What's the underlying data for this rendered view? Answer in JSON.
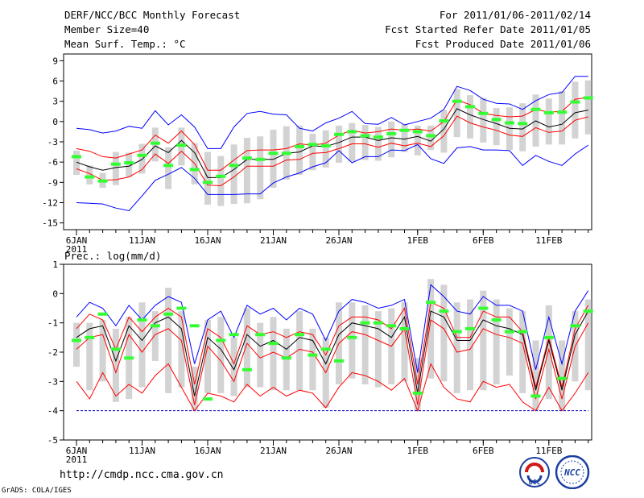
{
  "header": {
    "title": "DERF/NCC/BCC Monthly Forecast",
    "member_size": "Member Size=40",
    "variable": "Mean Surf. Temp.: °C",
    "period": "For 2011/01/06-2011/02/14",
    "fcst_started": "Fcst Started Refer Date 2011/01/05",
    "fcst_produced": "Fcst Produced Date 2011/01/06"
  },
  "footer": {
    "url": "http://cmdp.ncc.cma.gov.cn",
    "credit": "GrADS: COLA/IGES",
    "logo_left_text": "BCC",
    "logo_right_text": "NCC"
  },
  "colors": {
    "box": "#d3d3d3",
    "observed": "#33ff33",
    "mean": "#000000",
    "spread": "#ff0000",
    "envelope": "#0000ff",
    "floor": "#0000c0"
  },
  "chart_data": [
    {
      "type": "line",
      "title": "Mean Surf. Temp.: °C",
      "ylabel": "°C",
      "ylim": [
        -16,
        10
      ],
      "yticks": [
        9,
        6,
        3,
        0,
        -3,
        -6,
        -9,
        -12,
        -15
      ],
      "x_days": [
        1,
        2,
        3,
        4,
        5,
        6,
        7,
        8,
        9,
        10,
        11,
        12,
        13,
        14,
        15,
        16,
        17,
        18,
        19,
        20,
        21,
        22,
        23,
        24,
        25,
        26,
        27,
        28,
        29,
        30,
        31,
        32,
        33,
        34,
        35,
        36,
        37,
        38,
        39,
        40
      ],
      "xticks": [
        {
          "day": 1,
          "label": "6JAN",
          "sublabel": "2011"
        },
        {
          "day": 6,
          "label": "11JAN"
        },
        {
          "day": 11,
          "label": "16JAN"
        },
        {
          "day": 16,
          "label": "21JAN"
        },
        {
          "day": 21,
          "label": "26JAN"
        },
        {
          "day": 27,
          "label": "1FEB"
        },
        {
          "day": 32,
          "label": "6FEB"
        },
        {
          "day": 37,
          "label": "11FEB"
        }
      ],
      "series": [
        {
          "name": "max",
          "color": "#0000ff",
          "values": [
            -1,
            -1.2,
            -1.7,
            -1.4,
            -0.7,
            -1,
            1.6,
            -0.5,
            1,
            -0.8,
            -4,
            -4,
            -0.8,
            1.2,
            1.5,
            1.1,
            1,
            -1,
            -1.4,
            -0.2,
            0.5,
            1.5,
            -0.3,
            -0.4,
            0.6,
            -0.5,
            0,
            0.5,
            1.8,
            5.2,
            4.6,
            3.3,
            2.7,
            2.6,
            1.8,
            3.1,
            4,
            4.3,
            6.7,
            6.7
          ]
        },
        {
          "name": "upper",
          "color": "#ff0000",
          "values": [
            -4,
            -4.4,
            -5.2,
            -5.4,
            -4.8,
            -4.2,
            -2,
            -3.2,
            -1.4,
            -3.4,
            -7.2,
            -7.2,
            -5.7,
            -4.3,
            -4.2,
            -4.2,
            -4,
            -3.3,
            -3.5,
            -3.2,
            -2,
            -1.3,
            -1.7,
            -1.5,
            -1.1,
            -1.3,
            -1.1,
            -1.4,
            0,
            3.2,
            2.5,
            1.2,
            0.9,
            0.7,
            0.8,
            1.8,
            1.4,
            1.5,
            3.3,
            3.6
          ]
        },
        {
          "name": "mean",
          "color": "#000000",
          "values": [
            -6,
            -6.7,
            -7.2,
            -6.8,
            -6.6,
            -5.6,
            -3.6,
            -4.6,
            -2.8,
            -4.6,
            -8.3,
            -8.3,
            -7.1,
            -5.6,
            -5.6,
            -5.6,
            -4.7,
            -4.5,
            -3.6,
            -3.7,
            -3.1,
            -2.3,
            -2.3,
            -2.8,
            -2.4,
            -2.6,
            -2.2,
            -2.9,
            -1.1,
            1.9,
            1,
            0.3,
            -0.3,
            -1,
            -1.1,
            0.1,
            -0.8,
            -0.4,
            1.3,
            1.7
          ]
        },
        {
          "name": "lower",
          "color": "#ff0000",
          "values": [
            -7,
            -7.7,
            -8.7,
            -8.6,
            -8.2,
            -7.1,
            -4.8,
            -6.2,
            -4.4,
            -6.2,
            -9.4,
            -9.5,
            -8.2,
            -6.6,
            -6.6,
            -6.6,
            -5.7,
            -5.6,
            -4.7,
            -4.6,
            -4,
            -3.3,
            -3.3,
            -3.8,
            -3.2,
            -3.6,
            -3.2,
            -3.7,
            -2.1,
            0.8,
            -0.2,
            -0.8,
            -1.3,
            -2,
            -2.2,
            -0.9,
            -1.6,
            -1.4,
            0.2,
            0.7
          ]
        },
        {
          "name": "min",
          "color": "#0000ff",
          "values": [
            -12,
            -12.1,
            -12.2,
            -12.8,
            -13.2,
            -11,
            -8.7,
            -7.8,
            -6.8,
            -8.4,
            -10.8,
            -10.8,
            -10.8,
            -10.7,
            -10.7,
            -9.1,
            -8.2,
            -7.6,
            -6.7,
            -6.1,
            -4.3,
            -6.1,
            -5.2,
            -5.2,
            -4.2,
            -4.3,
            -3.4,
            -5.5,
            -6.2,
            -3.9,
            -3.7,
            -4.2,
            -4.2,
            -4.3,
            -6.5,
            -5,
            -5.9,
            -6.5,
            -4.8,
            -3.5
          ]
        }
      ],
      "boxes": [
        [
          -4.3,
          -7.9
        ],
        [
          -6.5,
          -9.3
        ],
        [
          -7.6,
          -9.8
        ],
        [
          -4.5,
          -9.4
        ],
        [
          -4.6,
          -8.2
        ],
        [
          -3.3,
          -7.7
        ],
        [
          -0.9,
          -5.9
        ],
        [
          -3.8,
          -10
        ],
        [
          -0.9,
          -6.5
        ],
        [
          -3.2,
          -9.3
        ],
        [
          -4.5,
          -12.3
        ],
        [
          -5.1,
          -12.5
        ],
        [
          -3.4,
          -12.2
        ],
        [
          -2.4,
          -12.1
        ],
        [
          -2.2,
          -11.5
        ],
        [
          -1.2,
          -9.8
        ],
        [
          -0.7,
          -8.6
        ],
        [
          -0.6,
          -7.9
        ],
        [
          -1.8,
          -7.2
        ],
        [
          -1.3,
          -6.8
        ],
        [
          -0.6,
          -6.1
        ],
        [
          -0.2,
          -5.9
        ],
        [
          -0.5,
          -5.7
        ],
        [
          -0.8,
          -5.8
        ],
        [
          0,
          -5.3
        ],
        [
          -0.4,
          -4.5
        ],
        [
          -0.6,
          -5
        ],
        [
          -0.6,
          -4.2
        ],
        [
          1.7,
          -4.6
        ],
        [
          4.8,
          -2.3
        ],
        [
          3.9,
          -2.5
        ],
        [
          3.5,
          -3.1
        ],
        [
          2,
          -3.5
        ],
        [
          2.1,
          -4.2
        ],
        [
          2.7,
          -4.4
        ],
        [
          4,
          -3.7
        ],
        [
          3.4,
          -3.4
        ],
        [
          4.5,
          -3.4
        ],
        [
          5.9,
          -2.5
        ],
        [
          6.1,
          -1.9
        ]
      ],
      "observed": [
        -5.2,
        -8.2,
        -8.8,
        -6.3,
        -6.1,
        -5,
        -3.2,
        -6.5,
        -3.5,
        -7.1,
        -9,
        -8.1,
        -6.5,
        -5.4,
        -5.6,
        -4.7,
        -4.7,
        -3.7,
        -3.4,
        -3.6,
        -1.9,
        -1.5,
        -2.1,
        -2.3,
        -1.8,
        -1.3,
        -1.5,
        -2.1,
        0.1,
        3,
        2.2,
        1.2,
        0.3,
        -0.2,
        -0.3,
        1.8,
        1.3,
        1.4,
        2.9,
        3.5
      ]
    },
    {
      "type": "line",
      "title": "Prec.: log(mm/d)",
      "ylabel": "log(mm/d)",
      "ylim": [
        -5,
        1
      ],
      "yticks": [
        1,
        0,
        -1,
        -2,
        -3,
        -4,
        -5
      ],
      "x_days": [
        1,
        2,
        3,
        4,
        5,
        6,
        7,
        8,
        9,
        10,
        11,
        12,
        13,
        14,
        15,
        16,
        17,
        18,
        19,
        20,
        21,
        22,
        23,
        24,
        25,
        26,
        27,
        28,
        29,
        30,
        31,
        32,
        33,
        34,
        35,
        36,
        37,
        38,
        39,
        40
      ],
      "xticks": [
        {
          "day": 1,
          "label": "6JAN",
          "sublabel": "2011"
        },
        {
          "day": 6,
          "label": "11JAN"
        },
        {
          "day": 11,
          "label": "16JAN"
        },
        {
          "day": 16,
          "label": "21JAN"
        },
        {
          "day": 21,
          "label": "26JAN"
        },
        {
          "day": 27,
          "label": "1FEB"
        },
        {
          "day": 32,
          "label": "6FEB"
        },
        {
          "day": 37,
          "label": "11FEB"
        }
      ],
      "floor_level": -4,
      "series": [
        {
          "name": "max",
          "color": "#0000ff",
          "values": [
            -0.8,
            -0.3,
            -0.5,
            -1.1,
            -0.4,
            -0.9,
            -0.4,
            -0.1,
            -0.3,
            -2.4,
            -0.9,
            -0.6,
            -1.5,
            -0.4,
            -0.7,
            -0.5,
            -0.9,
            -0.5,
            -0.7,
            -1.6,
            -0.6,
            -0.2,
            -0.3,
            -0.5,
            -0.4,
            -0.2,
            -2.7,
            0.3,
            -0.1,
            -0.6,
            -0.7,
            -0.1,
            -0.4,
            -0.4,
            -0.6,
            -2.6,
            -0.8,
            -2.4,
            -0.6,
            0.1
          ]
        },
        {
          "name": "upper",
          "color": "#ff0000",
          "values": [
            -1.2,
            -0.7,
            -0.9,
            -1.9,
            -0.8,
            -1.3,
            -0.8,
            -0.5,
            -0.8,
            -3.1,
            -1.2,
            -1.5,
            -2.4,
            -1.1,
            -1.4,
            -1.3,
            -1.5,
            -1.3,
            -1.4,
            -2.1,
            -1.1,
            -0.8,
            -0.8,
            -0.9,
            -1.2,
            -0.5,
            -3.1,
            -0.3,
            -0.5,
            -1.5,
            -1.5,
            -0.6,
            -0.8,
            -0.8,
            -1.3,
            -3.2,
            -1.5,
            -3.2,
            -1.2,
            -0.4
          ]
        },
        {
          "name": "mean",
          "color": "#000000",
          "values": [
            -1.5,
            -1.2,
            -1.1,
            -2.3,
            -1.1,
            -1.6,
            -1,
            -0.8,
            -1.2,
            -3.5,
            -1.5,
            -1.9,
            -2.6,
            -1.4,
            -1.8,
            -1.6,
            -1.9,
            -1.5,
            -1.6,
            -2.4,
            -1.4,
            -1,
            -1.1,
            -1.2,
            -1.5,
            -0.8,
            -3.4,
            -0.6,
            -0.8,
            -1.6,
            -1.6,
            -0.9,
            -1.1,
            -1.2,
            -1.4,
            -3.3,
            -1.6,
            -3.3,
            -1.4,
            -0.6
          ]
        },
        {
          "name": "lower",
          "color": "#ff0000",
          "values": [
            -1.9,
            -1.5,
            -1.4,
            -2.7,
            -1.4,
            -2,
            -1.4,
            -1.2,
            -1.6,
            -3.8,
            -1.8,
            -2.3,
            -3,
            -1.7,
            -2.2,
            -2,
            -2.2,
            -1.9,
            -2,
            -2.7,
            -1.7,
            -1.3,
            -1.4,
            -1.6,
            -1.8,
            -1.2,
            -3.8,
            -0.9,
            -1.2,
            -2,
            -1.9,
            -1.2,
            -1.4,
            -1.5,
            -1.7,
            -3.6,
            -1.9,
            -3.6,
            -1.8,
            -1
          ]
        },
        {
          "name": "min",
          "color": "#ff0000",
          "values": [
            -3,
            -3.6,
            -2.7,
            -3.5,
            -3.1,
            -3.4,
            -2.8,
            -2.4,
            -3.2,
            -4,
            -3.4,
            -3.5,
            -3.7,
            -3.1,
            -3.5,
            -3.2,
            -3.5,
            -3.3,
            -3.4,
            -3.9,
            -3.2,
            -2.7,
            -2.8,
            -3,
            -3.3,
            -2.9,
            -4,
            -2.4,
            -3.2,
            -3.6,
            -3.7,
            -3,
            -3.2,
            -3.1,
            -3.7,
            -4,
            -3.2,
            -4,
            -3.4,
            -2.7
          ]
        }
      ],
      "boxes": [
        [
          -1,
          -2.5
        ],
        [
          -1,
          -3.3
        ],
        [
          -0.9,
          -3
        ],
        [
          -1.2,
          -3.7
        ],
        [
          -0.8,
          -3.6
        ],
        [
          -0.3,
          -3.2
        ],
        [
          -0.6,
          -2.3
        ],
        [
          0.2,
          -3.4
        ],
        [
          -0.6,
          -3.2
        ],
        [
          -2.5,
          -4
        ],
        [
          -0.9,
          -3.4
        ],
        [
          -0.8,
          -3.4
        ],
        [
          -1.5,
          -3.5
        ],
        [
          -0.5,
          -3.2
        ],
        [
          -1,
          -3.2
        ],
        [
          -0.8,
          -3.3
        ],
        [
          -1.2,
          -3.3
        ],
        [
          -0.6,
          -3.3
        ],
        [
          -1.2,
          -3.3
        ],
        [
          -1.5,
          -3.9
        ],
        [
          -0.3,
          -3.1
        ],
        [
          -0.3,
          -2.9
        ],
        [
          -0.4,
          -3.1
        ],
        [
          -0.6,
          -3.2
        ],
        [
          -0.5,
          -3.1
        ],
        [
          -0.3,
          -3
        ],
        [
          -2.2,
          -4
        ],
        [
          0.5,
          -2.9
        ],
        [
          0.3,
          -3
        ],
        [
          -0.3,
          -3.4
        ],
        [
          -0.2,
          -3.3
        ],
        [
          0.1,
          -3.3
        ],
        [
          -0.2,
          -3.1
        ],
        [
          -0.5,
          -2.8
        ],
        [
          -0.6,
          -3.4
        ],
        [
          -1.6,
          -4
        ],
        [
          -0.4,
          -3.6
        ],
        [
          -1.6,
          -4
        ],
        [
          -0.6,
          -3
        ],
        [
          -0.2,
          -3.3
        ]
      ],
      "observed": [
        -1.6,
        -1.5,
        -0.7,
        -1.9,
        -2.2,
        -0.9,
        -1.1,
        -0.7,
        -0.5,
        -1.1,
        -3.6,
        -1.6,
        -1.4,
        -2.6,
        -1.4,
        -1.7,
        -2.2,
        -1.4,
        -2.1,
        -1.9,
        -2.3,
        -1.5,
        -1,
        -1,
        -1.1,
        -1.2,
        -3.4,
        -0.3,
        -0.6,
        -1.3,
        -1.2,
        -0.5,
        -0.9,
        -1.3,
        -1.3,
        -3.5,
        -1.5,
        -2.9,
        -1.1,
        -0.6
      ]
    }
  ]
}
